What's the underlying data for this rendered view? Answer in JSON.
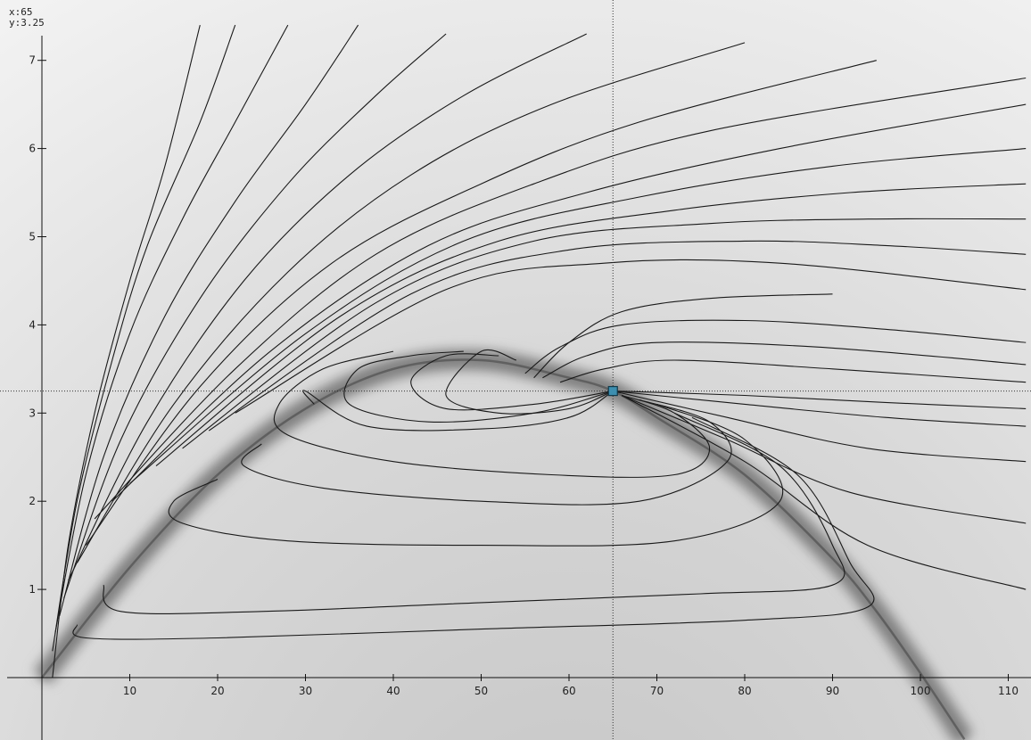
{
  "readout": {
    "x_label": "x:",
    "x_value": "65",
    "y_label": "y:",
    "y_value": "3.25"
  },
  "chart_data": {
    "type": "line",
    "title": "",
    "xlabel": "",
    "ylabel": "",
    "xlim": [
      0,
      112
    ],
    "ylim": [
      -0.7,
      7.4
    ],
    "x_ticks": [
      10,
      20,
      30,
      40,
      50,
      60,
      70,
      80,
      90,
      100,
      110
    ],
    "y_ticks": [
      1,
      2,
      3,
      4,
      5,
      6,
      7
    ],
    "grid": false,
    "legend": "none",
    "crosshair": {
      "x": 65,
      "y": 3.25
    },
    "equilibrium": {
      "x": 65,
      "y": 3.25
    },
    "nullcline": {
      "description_points": [
        [
          0,
          0
        ],
        [
          10,
          1.25
        ],
        [
          20,
          2.3
        ],
        [
          30,
          3.05
        ],
        [
          40,
          3.5
        ],
        [
          50,
          3.6
        ],
        [
          60,
          3.4
        ],
        [
          65,
          3.25
        ],
        [
          70,
          2.95
        ],
        [
          80,
          2.3
        ],
        [
          90,
          1.35
        ],
        [
          95,
          0.75
        ],
        [
          100,
          0.05
        ],
        [
          105,
          -0.7
        ]
      ]
    },
    "series": [
      {
        "values": [
          [
            1.2,
            0
          ],
          [
            3,
            1.5
          ],
          [
            6,
            3
          ],
          [
            10,
            4.5
          ],
          [
            14,
            5.8
          ],
          [
            18,
            7.4
          ]
        ]
      },
      {
        "values": [
          [
            1.2,
            0.3
          ],
          [
            4,
            2
          ],
          [
            8,
            3.6
          ],
          [
            12,
            4.9
          ],
          [
            18,
            6.3
          ],
          [
            22,
            7.4
          ]
        ]
      },
      {
        "values": [
          [
            1.5,
            0.5
          ],
          [
            5,
            2.3
          ],
          [
            10,
            3.9
          ],
          [
            16,
            5.2
          ],
          [
            22,
            6.3
          ],
          [
            28,
            7.4
          ]
        ]
      },
      {
        "values": [
          [
            2,
            0.7
          ],
          [
            7,
            2.5
          ],
          [
            14,
            4.1
          ],
          [
            22,
            5.4
          ],
          [
            30,
            6.5
          ],
          [
            36,
            7.4
          ]
        ]
      },
      {
        "values": [
          [
            2.5,
            0.9
          ],
          [
            9,
            2.7
          ],
          [
            18,
            4.3
          ],
          [
            28,
            5.6
          ],
          [
            38,
            6.6
          ],
          [
            46,
            7.3
          ]
        ]
      },
      {
        "values": [
          [
            3,
            1.1
          ],
          [
            12,
            2.9
          ],
          [
            23,
            4.5
          ],
          [
            35,
            5.7
          ],
          [
            48,
            6.6
          ],
          [
            62,
            7.3
          ]
        ]
      },
      {
        "values": [
          [
            4,
            1.3
          ],
          [
            15,
            3.1
          ],
          [
            28,
            4.6
          ],
          [
            42,
            5.7
          ],
          [
            58,
            6.5
          ],
          [
            80,
            7.2
          ]
        ]
      },
      {
        "values": [
          [
            5,
            1.5
          ],
          [
            18,
            3.3
          ],
          [
            33,
            4.7
          ],
          [
            50,
            5.6
          ],
          [
            68,
            6.3
          ],
          [
            95,
            7.0
          ]
        ]
      },
      {
        "values": [
          [
            6,
            1.8
          ],
          [
            22,
            3.5
          ],
          [
            38,
            4.8
          ],
          [
            56,
            5.6
          ],
          [
            76,
            6.2
          ],
          [
            112,
            6.8
          ]
        ]
      },
      {
        "values": [
          [
            8,
            2.0
          ],
          [
            26,
            3.7
          ],
          [
            44,
            4.9
          ],
          [
            62,
            5.5
          ],
          [
            84,
            6.0
          ],
          [
            112,
            6.5
          ]
        ]
      },
      {
        "values": [
          [
            10,
            2.2
          ],
          [
            30,
            3.9
          ],
          [
            48,
            4.95
          ],
          [
            68,
            5.45
          ],
          [
            90,
            5.8
          ],
          [
            112,
            6.0
          ]
        ]
      },
      {
        "values": [
          [
            13,
            2.4
          ],
          [
            34,
            4.1
          ],
          [
            52,
            4.95
          ],
          [
            72,
            5.3
          ],
          [
            92,
            5.5
          ],
          [
            112,
            5.6
          ]
        ]
      },
      {
        "values": [
          [
            16,
            2.6
          ],
          [
            38,
            4.25
          ],
          [
            56,
            4.95
          ],
          [
            76,
            5.15
          ],
          [
            94,
            5.2
          ],
          [
            112,
            5.2
          ]
        ]
      },
      {
        "values": [
          [
            19,
            2.8
          ],
          [
            42,
            4.35
          ],
          [
            60,
            4.85
          ],
          [
            80,
            4.95
          ],
          [
            96,
            4.9
          ],
          [
            112,
            4.8
          ]
        ]
      },
      {
        "values": [
          [
            22,
            3.0
          ],
          [
            46,
            4.4
          ],
          [
            64,
            4.7
          ],
          [
            84,
            4.7
          ],
          [
            112,
            4.4
          ]
        ]
      },
      {
        "values": [
          [
            56,
            3.4
          ],
          [
            60,
            3.8
          ],
          [
            66,
            4.15
          ],
          [
            76,
            4.3
          ],
          [
            90,
            4.35
          ]
        ]
      },
      {
        "values": [
          [
            55,
            3.45
          ],
          [
            59,
            3.75
          ],
          [
            66,
            4.0
          ],
          [
            80,
            4.05
          ],
          [
            96,
            3.95
          ],
          [
            112,
            3.8
          ]
        ]
      },
      {
        "values": [
          [
            57,
            3.4
          ],
          [
            62,
            3.65
          ],
          [
            70,
            3.8
          ],
          [
            88,
            3.75
          ],
          [
            112,
            3.55
          ]
        ]
      },
      {
        "values": [
          [
            59,
            3.35
          ],
          [
            64,
            3.5
          ],
          [
            72,
            3.6
          ],
          [
            90,
            3.5
          ],
          [
            112,
            3.35
          ]
        ]
      },
      {
        "values": [
          [
            65,
            3.25
          ],
          [
            80,
            3.2
          ],
          [
            96,
            3.12
          ],
          [
            112,
            3.05
          ]
        ]
      },
      {
        "values": [
          [
            65,
            3.25
          ],
          [
            80,
            3.1
          ],
          [
            96,
            2.95
          ],
          [
            112,
            2.85
          ]
        ]
      },
      {
        "values": [
          [
            65,
            3.25
          ],
          [
            78,
            2.95
          ],
          [
            94,
            2.6
          ],
          [
            112,
            2.45
          ]
        ]
      },
      {
        "values": [
          [
            66,
            3.2
          ],
          [
            78,
            2.7
          ],
          [
            92,
            2.1
          ],
          [
            112,
            1.75
          ]
        ]
      },
      {
        "values": [
          [
            66,
            3.2
          ],
          [
            80,
            2.45
          ],
          [
            94,
            1.5
          ],
          [
            112,
            1.0
          ]
        ]
      },
      {
        "values": [
          [
            65,
            3.25
          ],
          [
            60,
            3.05
          ],
          [
            52,
            3.0
          ],
          [
            46,
            3.2
          ],
          [
            50,
            3.7
          ],
          [
            54,
            3.6
          ]
        ]
      },
      {
        "values": [
          [
            65,
            3.25
          ],
          [
            56,
            3.1
          ],
          [
            46,
            3.05
          ],
          [
            42,
            3.35
          ],
          [
            46,
            3.65
          ],
          [
            52,
            3.65
          ]
        ]
      },
      {
        "values": [
          [
            65,
            3.25
          ],
          [
            56,
            3.0
          ],
          [
            44,
            2.9
          ],
          [
            35,
            3.1
          ],
          [
            36,
            3.5
          ],
          [
            42,
            3.65
          ],
          [
            48,
            3.7
          ]
        ]
      },
      {
        "values": [
          [
            65,
            3.25
          ],
          [
            60,
            2.95
          ],
          [
            50,
            2.82
          ],
          [
            37,
            2.85
          ],
          [
            30,
            3.25
          ],
          [
            31,
            3.1
          ]
        ]
      },
      {
        "values": [
          [
            66,
            3.2
          ],
          [
            72,
            3.0
          ],
          [
            76,
            2.6
          ],
          [
            72,
            2.3
          ],
          [
            58,
            2.3
          ],
          [
            40,
            2.45
          ],
          [
            28,
            2.75
          ],
          [
            27,
            3.1
          ],
          [
            32,
            3.5
          ],
          [
            40,
            3.7
          ]
        ]
      },
      {
        "values": [
          [
            68,
            3.15
          ],
          [
            76,
            2.9
          ],
          [
            78,
            2.45
          ],
          [
            68,
            2.0
          ],
          [
            50,
            2.0
          ],
          [
            32,
            2.15
          ],
          [
            23,
            2.4
          ],
          [
            25,
            2.65
          ]
        ]
      },
      {
        "values": [
          [
            70,
            3.1
          ],
          [
            80,
            2.7
          ],
          [
            84,
            2.0
          ],
          [
            72,
            1.55
          ],
          [
            50,
            1.5
          ],
          [
            28,
            1.55
          ],
          [
            16,
            1.75
          ],
          [
            15,
            2.0
          ],
          [
            20,
            2.25
          ]
        ]
      },
      {
        "values": [
          [
            72,
            3.0
          ],
          [
            84,
            2.4
          ],
          [
            90,
            1.5
          ],
          [
            90,
            1.05
          ],
          [
            75,
            0.95
          ],
          [
            50,
            0.85
          ],
          [
            25,
            0.75
          ],
          [
            9,
            0.75
          ],
          [
            7,
            1.05
          ]
        ]
      },
      {
        "values": [
          [
            74,
            2.95
          ],
          [
            86,
            2.3
          ],
          [
            92,
            1.3
          ],
          [
            94,
            0.8
          ],
          [
            80,
            0.65
          ],
          [
            50,
            0.55
          ],
          [
            20,
            0.45
          ],
          [
            5,
            0.45
          ],
          [
            4,
            0.6
          ]
        ]
      }
    ]
  }
}
